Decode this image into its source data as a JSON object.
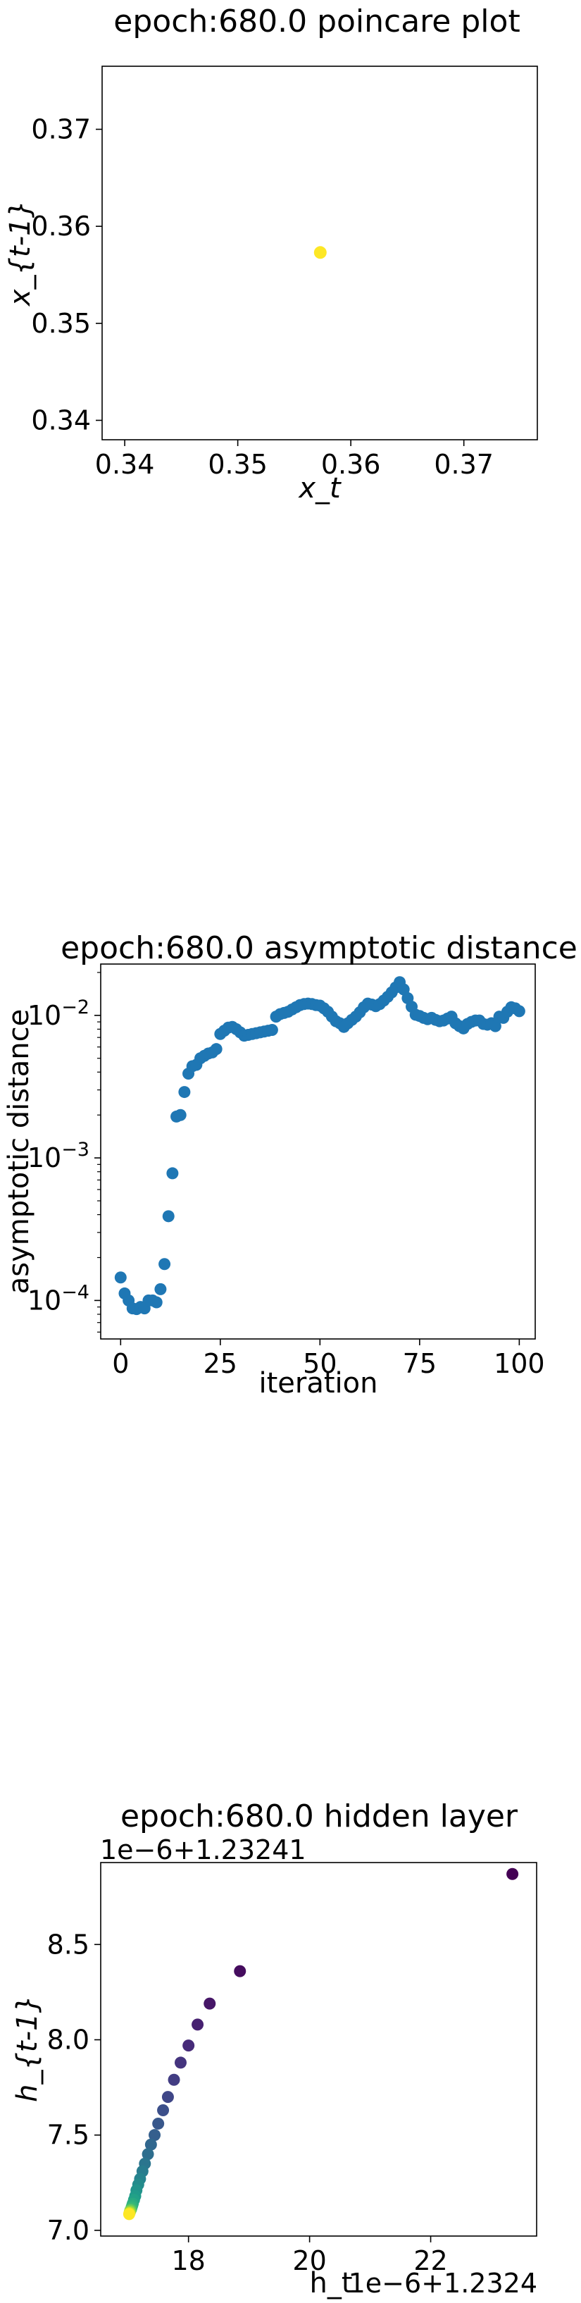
{
  "chart_data": [
    {
      "type": "scatter",
      "title": "epoch:680.0 poincare plot",
      "xlabel": "x_t",
      "ylabel": "x_{t-1}",
      "xlim": [
        0.338,
        0.3765
      ],
      "ylim": [
        0.338,
        0.3765
      ],
      "xticks": [
        "0.34",
        "0.35",
        "0.36",
        "0.37"
      ],
      "yticks": [
        "0.34",
        "0.35",
        "0.36",
        "0.37"
      ],
      "points": [
        {
          "x": 0.3573,
          "y": 0.3573
        }
      ],
      "color": "#fde725",
      "grid": false,
      "legend": "none"
    },
    {
      "type": "scatter",
      "title": "epoch:680.0 asymptotic distance",
      "xlabel": "iteration",
      "ylabel": "asymptotic distance",
      "yscale": "log",
      "xlim": [
        -5,
        104
      ],
      "ylim_exp": [
        -4.27,
        -1.64
      ],
      "xticks": [
        "0",
        "25",
        "50",
        "75",
        "100"
      ],
      "yticks": [
        {
          "exp": -2,
          "label": "10",
          "sup": "−2"
        },
        {
          "exp": -3,
          "label": "10",
          "sup": "−3"
        },
        {
          "exp": -4,
          "label": "10",
          "sup": "−4"
        }
      ],
      "color": "#1f77b4",
      "y": [
        0.000145,
        0.000112,
        0.0001,
        8.8e-05,
        8.7e-05,
        9e-05,
        8.8e-05,
        0.0001,
        0.0001,
        9.7e-05,
        0.00012,
        0.00018,
        0.00039,
        0.00078,
        0.00195,
        0.002,
        0.0029,
        0.0039,
        0.0044,
        0.0045,
        0.005,
        0.0052,
        0.0054,
        0.0055,
        0.0058,
        0.0074,
        0.0078,
        0.0082,
        0.0083,
        0.008,
        0.0076,
        0.0072,
        0.0073,
        0.0074,
        0.0075,
        0.0076,
        0.0077,
        0.0078,
        0.0079,
        0.0098,
        0.0102,
        0.0104,
        0.0106,
        0.011,
        0.0114,
        0.0118,
        0.012,
        0.0121,
        0.012,
        0.0118,
        0.0117,
        0.0112,
        0.0106,
        0.0098,
        0.0091,
        0.0088,
        0.0083,
        0.0088,
        0.0093,
        0.0098,
        0.0105,
        0.0114,
        0.0121,
        0.0119,
        0.0116,
        0.012,
        0.0127,
        0.0135,
        0.0145,
        0.0157,
        0.0171,
        0.0152,
        0.0132,
        0.0115,
        0.0101,
        0.0099,
        0.0096,
        0.0094,
        0.0096,
        0.0093,
        0.0091,
        0.0092,
        0.0095,
        0.0098,
        0.0088,
        0.0084,
        0.0081,
        0.0087,
        0.009,
        0.0092,
        0.0092,
        0.0087,
        0.0086,
        0.0088,
        0.0084,
        0.0098,
        0.0096,
        0.0106,
        0.0114,
        0.0112,
        0.0107
      ],
      "grid": false,
      "legend": "none"
    },
    {
      "type": "scatter",
      "title": "epoch:680.0 hidden layer",
      "xlabel": "h_t",
      "ylabel": "h_{t-1}",
      "x_offset_label": "1e−6+1.2324",
      "y_offset_label": "1e−6+1.23241",
      "xlim": [
        16.55,
        23.75
      ],
      "ylim": [
        6.97,
        8.93
      ],
      "xticks": [
        "18",
        "20",
        "22"
      ],
      "yticks": [
        "7.0",
        "7.5",
        "8.0",
        "8.5"
      ],
      "colormap": "viridis",
      "points": [
        {
          "x": 23.35,
          "y": 8.87,
          "c": 0.0
        },
        {
          "x": 18.85,
          "y": 8.36,
          "c": 0.03
        },
        {
          "x": 18.35,
          "y": 8.19,
          "c": 0.06
        },
        {
          "x": 18.15,
          "y": 8.08,
          "c": 0.09
        },
        {
          "x": 18.0,
          "y": 7.97,
          "c": 0.12
        },
        {
          "x": 17.87,
          "y": 7.88,
          "c": 0.15
        },
        {
          "x": 17.76,
          "y": 7.79,
          "c": 0.18
        },
        {
          "x": 17.66,
          "y": 7.7,
          "c": 0.21
        },
        {
          "x": 17.58,
          "y": 7.63,
          "c": 0.24
        },
        {
          "x": 17.5,
          "y": 7.56,
          "c": 0.27
        },
        {
          "x": 17.44,
          "y": 7.5,
          "c": 0.3
        },
        {
          "x": 17.38,
          "y": 7.45,
          "c": 0.33
        },
        {
          "x": 17.33,
          "y": 7.4,
          "c": 0.36
        },
        {
          "x": 17.28,
          "y": 7.35,
          "c": 0.39
        },
        {
          "x": 17.24,
          "y": 7.31,
          "c": 0.42
        },
        {
          "x": 17.2,
          "y": 7.27,
          "c": 0.45
        },
        {
          "x": 17.17,
          "y": 7.24,
          "c": 0.48
        },
        {
          "x": 17.14,
          "y": 7.21,
          "c": 0.51
        },
        {
          "x": 17.12,
          "y": 7.18,
          "c": 0.54
        },
        {
          "x": 17.1,
          "y": 7.16,
          "c": 0.57
        },
        {
          "x": 17.08,
          "y": 7.14,
          "c": 0.6
        },
        {
          "x": 17.07,
          "y": 7.13,
          "c": 0.63
        },
        {
          "x": 17.06,
          "y": 7.12,
          "c": 0.66
        },
        {
          "x": 17.05,
          "y": 7.11,
          "c": 0.7
        },
        {
          "x": 17.04,
          "y": 7.105,
          "c": 0.75
        },
        {
          "x": 17.035,
          "y": 7.1,
          "c": 0.8
        },
        {
          "x": 17.03,
          "y": 7.095,
          "c": 0.86
        },
        {
          "x": 17.025,
          "y": 7.09,
          "c": 0.93
        },
        {
          "x": 17.02,
          "y": 7.085,
          "c": 1.0
        }
      ],
      "grid": false,
      "legend": "none"
    }
  ]
}
